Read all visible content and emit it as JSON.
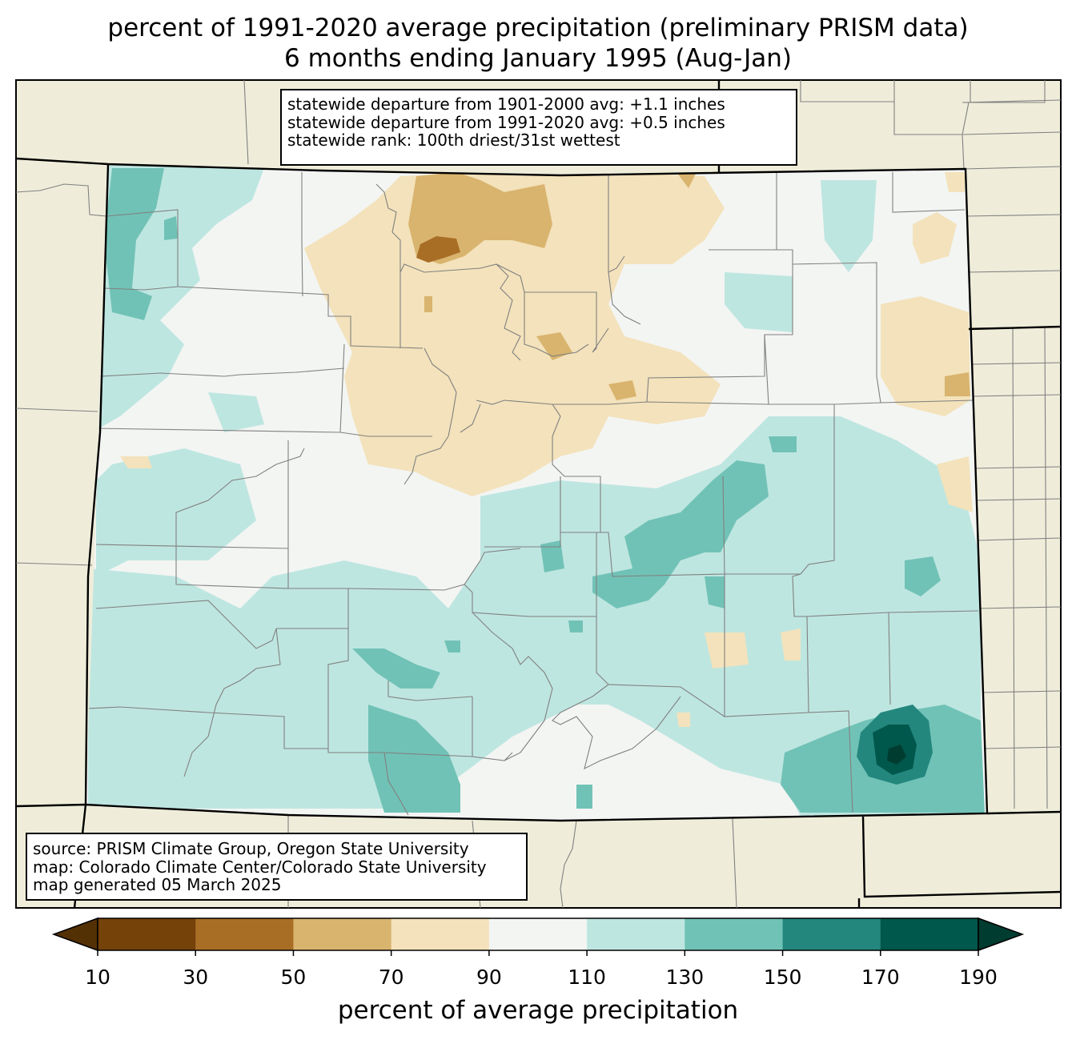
{
  "title": {
    "line1": "percent of 1991-2020 average precipitation (preliminary PRISM data)",
    "line2": "6 months ending January 1995 (Aug-Jan)"
  },
  "stats": {
    "line1": "statewide departure from 1901-2000 avg: +1.1 inches",
    "line2": "statewide departure from 1991-2020 avg: +0.5 inches",
    "line3": "statewide rank: 100th driest/31st wettest"
  },
  "source": {
    "line1": "source: PRISM Climate Group, Oregon State University",
    "line2": "map: Colorado Climate Center/Colorado State University",
    "line3": "map generated 05 March 2025"
  },
  "colorbar": {
    "label": "percent of average precipitation",
    "ticks": [
      "10",
      "30",
      "50",
      "70",
      "90",
      "110",
      "130",
      "150",
      "170",
      "190"
    ],
    "under_color": "#543005",
    "over_color": "#003c30",
    "colors": [
      "#8c510a",
      "#bf812d",
      "#dfc27d",
      "#f6e8c3",
      "#f5f5f5",
      "#c7eae5",
      "#80cdc1",
      "#35978f",
      "#01665e"
    ],
    "bin_colors": [
      "#75420a",
      "#a96e26",
      "#d9b46e",
      "#f3e2bb",
      "#f3f5f3",
      "#bee6e0",
      "#71c2b6",
      "#23877e",
      "#00574b"
    ]
  },
  "map_colors": {
    "background": "#efedda",
    "county_lines": "#808080",
    "state_lines": "#000000"
  }
}
